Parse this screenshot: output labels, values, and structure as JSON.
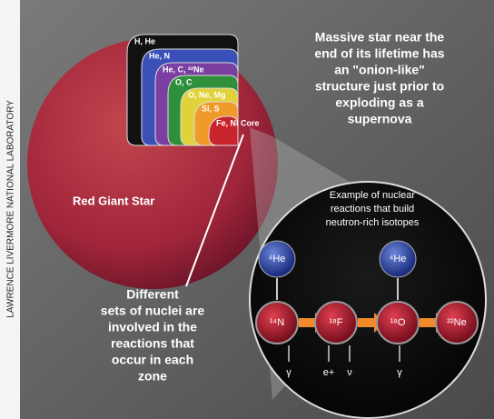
{
  "credit": "LAWRENCE LIVERMORE NATIONAL LABORATORY",
  "caption": [
    "Massive star near the",
    "end of its lifetime has",
    "an \"onion-like\"",
    "structure just prior to",
    "exploding as a",
    "supernova"
  ],
  "layers": [
    "H, He",
    "He, N",
    "He, C, ²²Ne",
    "O, C",
    "O, Ne, Mg",
    "Si, S",
    "Fe, Ni Core"
  ],
  "star_label": "Red Giant Star",
  "note": [
    "Different",
    "sets of nuclei are",
    "involved in the",
    "reactions that",
    "occur in each",
    "zone"
  ],
  "inset": {
    "title": [
      "Example of nuclear",
      "reactions that build",
      "neutron-rich isotopes"
    ],
    "inputs": [
      "⁴He",
      "⁴He"
    ],
    "nuclei": [
      "¹⁴N",
      "¹⁸F",
      "¹⁸O",
      "²²Ne"
    ],
    "emissions": [
      "γ",
      "e+",
      "ν",
      "γ"
    ]
  }
}
